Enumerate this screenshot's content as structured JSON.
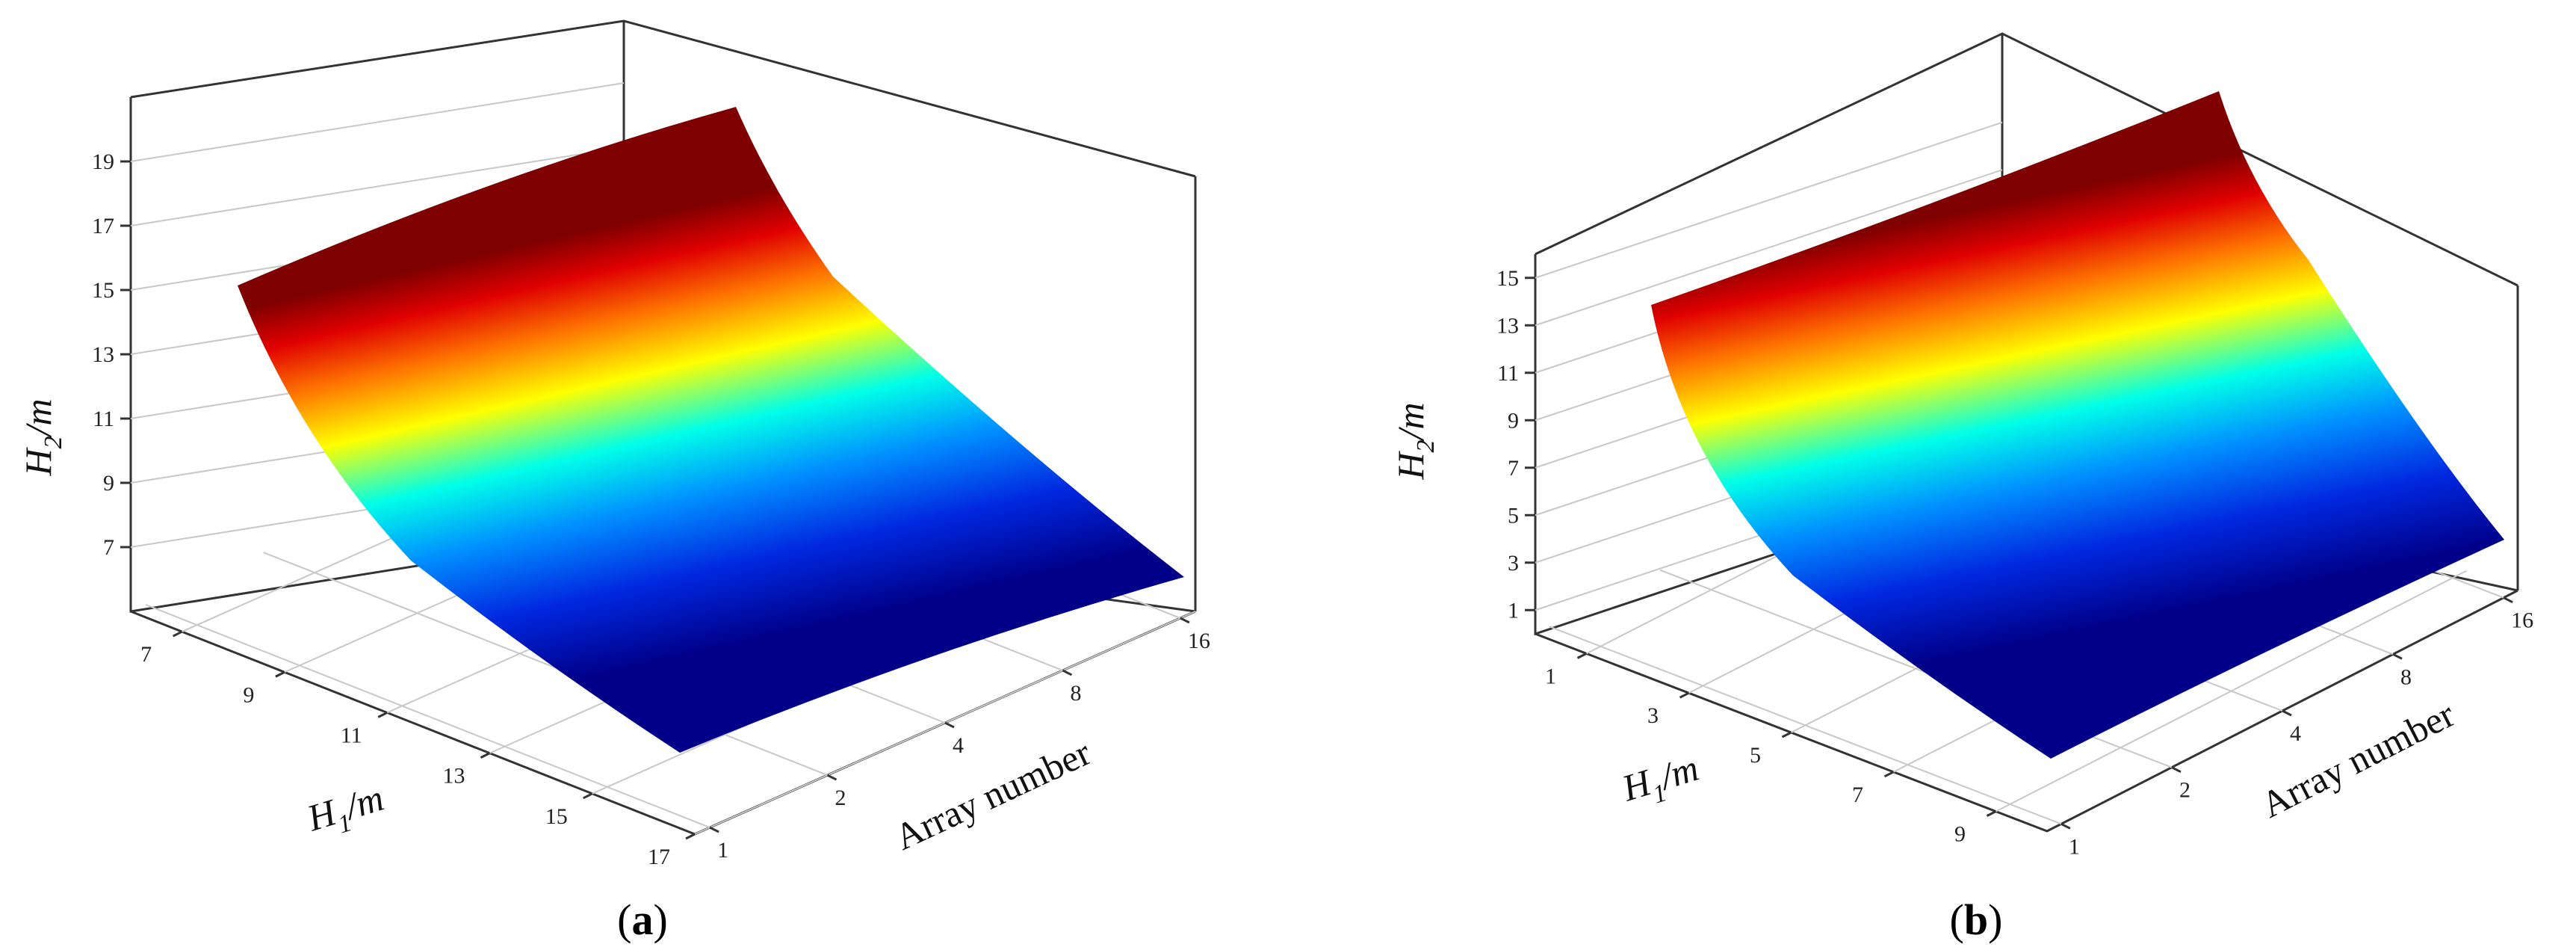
{
  "chart_data": [
    {
      "type": "surface",
      "panel_label": "a",
      "xlabel": "H1/m",
      "ylabel": "Array number",
      "zlabel": "H2/m",
      "x_ticks": [
        "7",
        "9",
        "11",
        "13",
        "15",
        "17"
      ],
      "y_ticks": [
        "1",
        "2",
        "4",
        "8",
        "16"
      ],
      "z_ticks": [
        "7",
        "9",
        "11",
        "13",
        "15",
        "17",
        "19"
      ],
      "xlim": [
        6,
        17
      ],
      "ylim": [
        1,
        16
      ],
      "zlim": [
        5,
        21
      ],
      "grid": true,
      "colormap": "jet",
      "surface": {
        "x": [
          6,
          17
        ],
        "y_array": [
          1,
          16
        ],
        "z_at_x_min": [
          17.2,
          20.0
        ],
        "z_at_x_max": [
          6.0,
          8.0
        ]
      }
    },
    {
      "type": "surface",
      "panel_label": "b",
      "xlabel": "H1/m",
      "ylabel": "Array number",
      "zlabel": "H2/m",
      "x_ticks": [
        "1",
        "3",
        "5",
        "7",
        "9"
      ],
      "y_ticks": [
        "1",
        "2",
        "4",
        "8",
        "16"
      ],
      "z_ticks": [
        "1",
        "3",
        "5",
        "7",
        "9",
        "11",
        "13",
        "15"
      ],
      "xlim": [
        0,
        10
      ],
      "ylim": [
        1,
        16
      ],
      "zlim": [
        0,
        16
      ],
      "grid": true,
      "colormap": "jet",
      "surface": {
        "x": [
          0,
          10
        ],
        "y_array": [
          1,
          16
        ],
        "z_at_x_min": [
          13.5,
          16.8
        ],
        "z_at_x_max": [
          0.2,
          2.8
        ]
      }
    }
  ],
  "labels": {
    "a_text": "a",
    "b_text": "b",
    "paren_open": "(",
    "paren_close": ")",
    "h_letter": "H",
    "sub1": "1",
    "sub2": "2",
    "unit": "/m",
    "array_number": "Array number"
  }
}
